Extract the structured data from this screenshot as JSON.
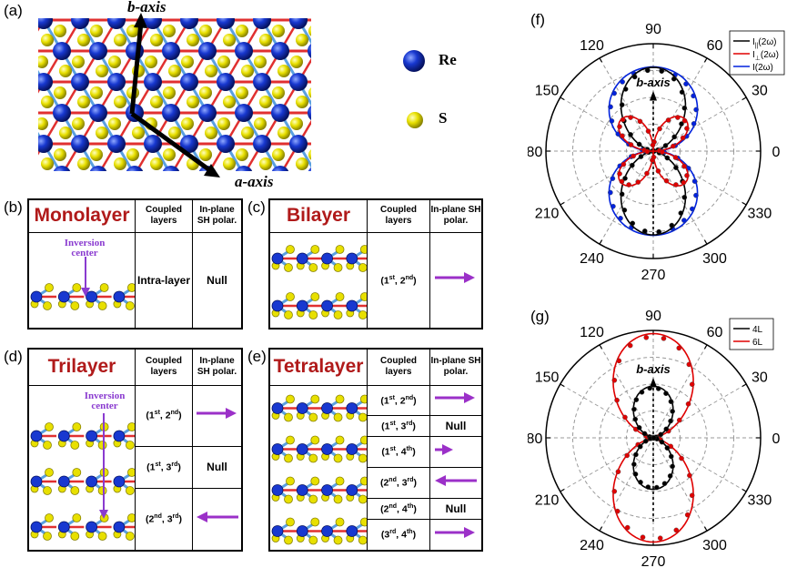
{
  "panel_letters": {
    "a": "(a)",
    "b": "(b)",
    "c": "(c)",
    "d": "(d)",
    "e": "(e)",
    "f": "(f)",
    "g": "(g)"
  },
  "structure": {
    "b_axis": "b-axis",
    "a_axis": "a-axis",
    "legend": [
      {
        "label": "Re",
        "color": "#1030c8"
      },
      {
        "label": "S",
        "color": "#e8e000"
      }
    ]
  },
  "headers": {
    "coupled": "Coupled layers",
    "polar": "In-plane SH polar."
  },
  "inversion_center": "Inversion center",
  "null": "Null",
  "intra": "Intra-layer",
  "monolayer": {
    "title": "Monolayer"
  },
  "bilayer": {
    "title": "Bilayer",
    "rows": [
      {
        "a": "1",
        "as": "st",
        "b": "2",
        "bs": "nd",
        "arrow": "right"
      }
    ]
  },
  "trilayer": {
    "title": "Trilayer",
    "rows": [
      {
        "a": "1",
        "as": "st",
        "b": "2",
        "bs": "nd",
        "arrow": "right"
      },
      {
        "a": "1",
        "as": "st",
        "b": "3",
        "bs": "rd",
        "arrow": "null"
      },
      {
        "a": "2",
        "as": "nd",
        "b": "3",
        "bs": "rd",
        "arrow": "left"
      }
    ]
  },
  "tetralayer": {
    "title": "Tetralayer",
    "rows": [
      {
        "a": "1",
        "as": "st",
        "b": "2",
        "bs": "nd",
        "arrow": "right"
      },
      {
        "a": "1",
        "as": "st",
        "b": "3",
        "bs": "rd",
        "arrow": "null"
      },
      {
        "a": "1",
        "as": "st",
        "b": "4",
        "bs": "th",
        "arrow": "right-short"
      },
      {
        "a": "2",
        "as": "nd",
        "b": "3",
        "bs": "rd",
        "arrow": "left"
      },
      {
        "a": "2",
        "as": "nd",
        "b": "4",
        "bs": "th",
        "arrow": "null"
      },
      {
        "a": "3",
        "as": "rd",
        "b": "4",
        "bs": "th",
        "arrow": "right"
      }
    ]
  },
  "arrow_color": "#9b30c8",
  "chart_data": [
    {
      "type": "polar",
      "panel": "(f)",
      "angle_ticks": [
        "0",
        "30",
        "60",
        "90",
        "120",
        "150",
        "180",
        "210",
        "240",
        "270",
        "300",
        "330"
      ],
      "annotation": "b-axis",
      "radial_range": [
        0,
        1
      ],
      "series": [
        {
          "name": "I||(2ω)",
          "legend_main": "I",
          "legend_sub": "||",
          "legend_tail": "(2ω)",
          "color": "#000000",
          "model": "|cos(θ-90)|^2",
          "scale": 0.78
        },
        {
          "name": "I⊥(2ω)",
          "legend_main": "I",
          "legend_sub": "⊥",
          "legend_tail": "(2ω)",
          "color": "#e00000",
          "model": "|sin(θ-90)cos(θ-90)|*2",
          "scale": 0.42
        },
        {
          "name": "I(2ω)",
          "legend_main": "I(2ω)",
          "legend_sub": "",
          "legend_tail": "",
          "color": "#0022dd",
          "model": "sqrt(a^2+b^2)",
          "scale": 1.0
        }
      ]
    },
    {
      "type": "polar",
      "panel": "(g)",
      "angle_ticks": [
        "0",
        "30",
        "60",
        "90",
        "120",
        "150",
        "180",
        "210",
        "240",
        "270",
        "300",
        "330"
      ],
      "annotation": "b-axis",
      "radial_range": [
        0,
        1
      ],
      "series": [
        {
          "name": "4L",
          "legend_main": "4L",
          "legend_sub": "",
          "legend_tail": "",
          "color": "#000000",
          "scale": 0.48
        },
        {
          "name": "6L",
          "legend_main": "6L",
          "legend_sub": "",
          "legend_tail": "",
          "color": "#e00000",
          "scale": 1.0
        }
      ]
    }
  ]
}
